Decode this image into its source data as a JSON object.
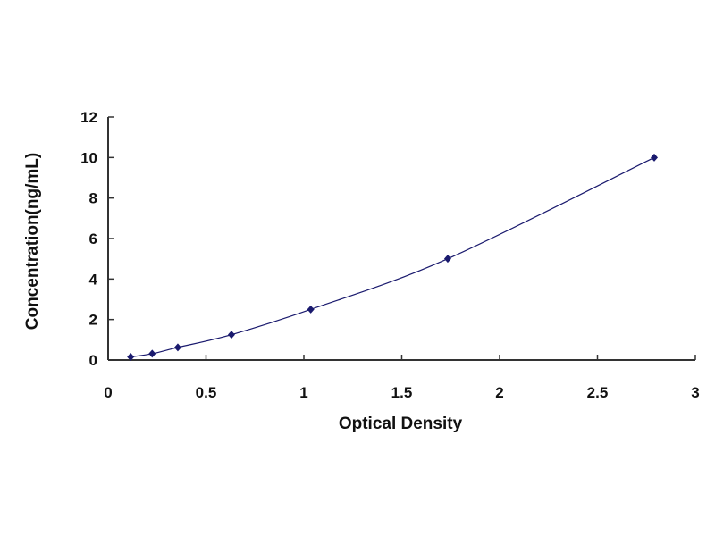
{
  "chart_data": {
    "type": "scatter",
    "title": "",
    "xlabel": "Optical Density",
    "ylabel": "Concentration(ng/mL)",
    "xlim": [
      0,
      3
    ],
    "ylim": [
      0,
      12
    ],
    "x_ticks": [
      "0",
      "0.5",
      "1",
      "1.5",
      "2",
      "2.5",
      "3"
    ],
    "y_ticks": [
      "0",
      "2",
      "4",
      "6",
      "8",
      "10",
      "12"
    ],
    "grid": false,
    "legend": "none",
    "series": [
      {
        "x": [
          0.115,
          0.225,
          0.356,
          0.63,
          1.035,
          1.735,
          2.79
        ],
        "y": [
          0.156,
          0.312,
          0.625,
          1.25,
          2.5,
          5,
          10
        ],
        "marker": "diamond",
        "fit_line": "smooth curve",
        "color": "#1a1a6e"
      }
    ]
  }
}
